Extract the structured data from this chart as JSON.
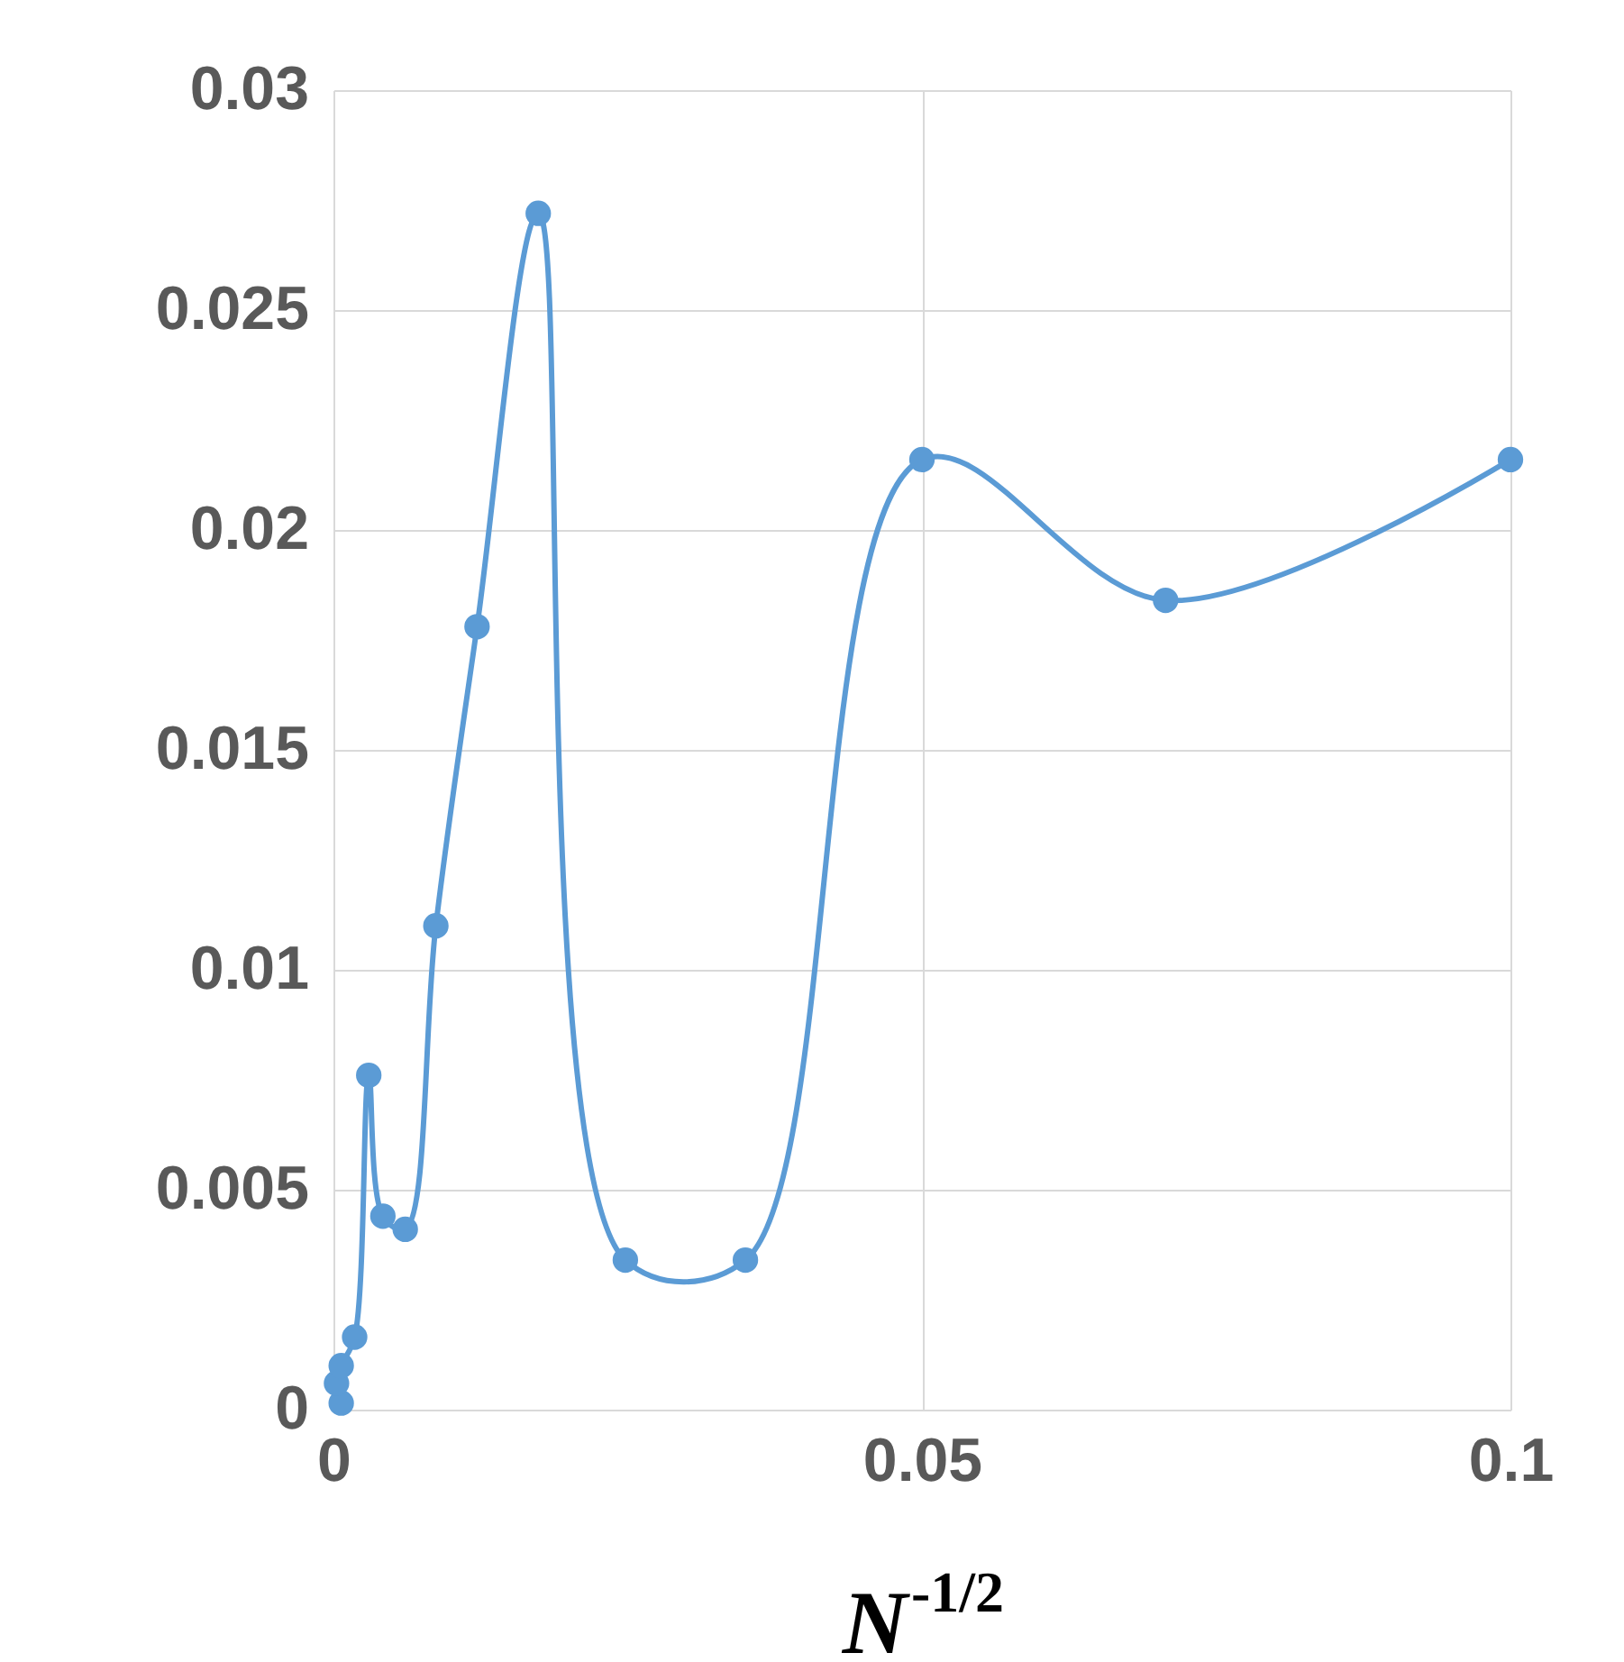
{
  "chart_data": {
    "type": "line",
    "xlabel": "N$^{-1/2}$",
    "x": [
      0.00066,
      0.00026,
      0.00066,
      0.0018,
      0.003,
      0.0042,
      0.0061,
      0.0087,
      0.0122,
      0.0174,
      0.0248,
      0.035,
      0.05,
      0.0707,
      0.1
    ],
    "series": [
      {
        "color": "#5b9bd5",
        "values": [
          0.00015,
          0.0006,
          0.001,
          0.00165,
          0.0076,
          0.0044,
          0.0041,
          0.011,
          0.0178,
          0.0272,
          0.0034,
          0.0034,
          0.0216,
          0.0184,
          0.0216
        ]
      }
    ],
    "xlim": [
      0,
      0.1
    ],
    "xticks": [
      0,
      0.05,
      0.1
    ],
    "ylim": [
      0,
      0.03
    ],
    "yticks": [
      0,
      0.005,
      0.01,
      0.015,
      0.02,
      0.025,
      0.03
    ],
    "grid": true,
    "marker": "circle",
    "line_style": "solid"
  }
}
